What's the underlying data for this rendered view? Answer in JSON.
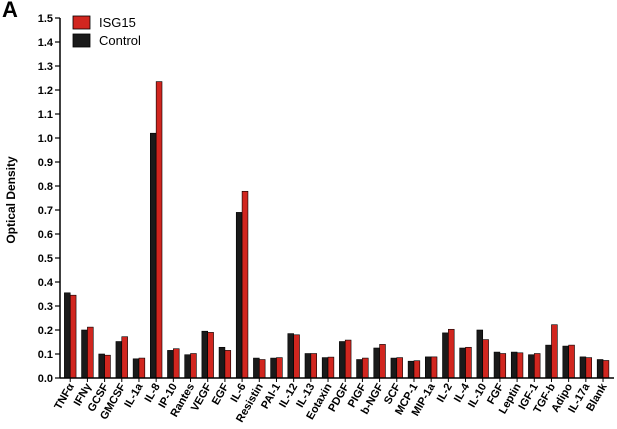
{
  "panel_label": "A",
  "chart_data": {
    "type": "bar",
    "title": "",
    "xlabel": "",
    "ylabel": "Optical Density",
    "ylim": [
      0,
      1.5
    ],
    "yticks": [
      0.0,
      0.1,
      0.2,
      0.3,
      0.4,
      0.5,
      0.6,
      0.7,
      0.8,
      0.9,
      1.0,
      1.1,
      1.2,
      1.3,
      1.4,
      1.5
    ],
    "ytick_labels": [
      "0.0",
      "0.1",
      "0.2",
      "0.3",
      "0.4",
      "0.5",
      "0.6",
      "0.7",
      "0.8",
      "0.9",
      "1.0",
      "1.1",
      "1.2",
      "1.3",
      "1.4",
      "1.5"
    ],
    "grid": false,
    "legend_position": "top-left",
    "categories": [
      "TNFα",
      "IFNγ",
      "GCSF",
      "GMCSF",
      "IL-1a",
      "IL-8",
      "IP-10",
      "Rantes",
      "VEGF",
      "EGF",
      "IL-6",
      "Resistin",
      "PAI-1",
      "IL-12",
      "IL-13",
      "Eotaxin",
      "PDGF",
      "PIGF",
      "b-NGF",
      "SCF",
      "MCP-1",
      "MIP-1a",
      "IL-2",
      "IL-4",
      "IL-10",
      "FGF",
      "Leptin",
      "IGF-1",
      "TGF-b",
      "Adipo",
      "IL-17a",
      "Blank"
    ],
    "series": [
      {
        "name": "Control",
        "color": "#1a1a1a",
        "values": [
          0.355,
          0.2,
          0.1,
          0.152,
          0.08,
          1.02,
          0.115,
          0.097,
          0.195,
          0.128,
          0.69,
          0.083,
          0.083,
          0.185,
          0.102,
          0.085,
          0.152,
          0.077,
          0.125,
          0.083,
          0.07,
          0.088,
          0.188,
          0.125,
          0.2,
          0.108,
          0.108,
          0.097,
          0.137,
          0.133,
          0.088,
          0.077
        ]
      },
      {
        "name": "ISG15",
        "color": "#d1261f",
        "values": [
          0.345,
          0.212,
          0.095,
          0.172,
          0.083,
          1.235,
          0.122,
          0.102,
          0.19,
          0.115,
          0.778,
          0.077,
          0.085,
          0.18,
          0.102,
          0.087,
          0.158,
          0.083,
          0.14,
          0.085,
          0.072,
          0.088,
          0.203,
          0.128,
          0.16,
          0.102,
          0.105,
          0.102,
          0.222,
          0.137,
          0.085,
          0.073
        ]
      }
    ],
    "legend": [
      {
        "name": "ISG15",
        "color": "#d1261f"
      },
      {
        "name": "Control",
        "color": "#1a1a1a"
      }
    ]
  }
}
